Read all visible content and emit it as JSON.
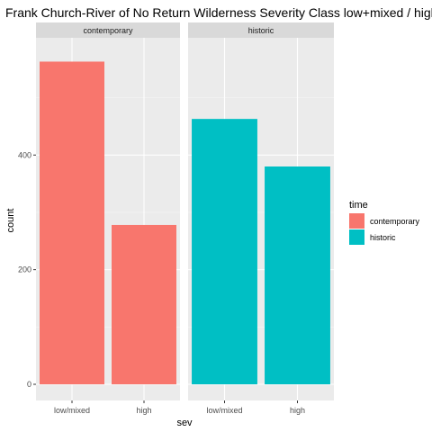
{
  "chart_data": {
    "type": "bar",
    "title": "Frank Church-River of No Return Wilderness Severity Class low+mixed / high",
    "xlabel": "sev",
    "ylabel": "count",
    "categories": [
      "low/mixed",
      "high"
    ],
    "facets": [
      "contemporary",
      "historic"
    ],
    "series": [
      {
        "name": "contemporary",
        "facet": "contemporary",
        "color": "#F8766D",
        "values": [
          563,
          278
        ]
      },
      {
        "name": "historic",
        "facet": "historic",
        "color": "#00BFC4",
        "values": [
          463,
          380
        ]
      }
    ],
    "yticks": [
      0,
      200,
      400
    ],
    "ylim": [
      0,
      592
    ],
    "grid": true,
    "legend": {
      "title": "time",
      "position": "right",
      "entries": [
        "contemporary",
        "historic"
      ]
    }
  }
}
